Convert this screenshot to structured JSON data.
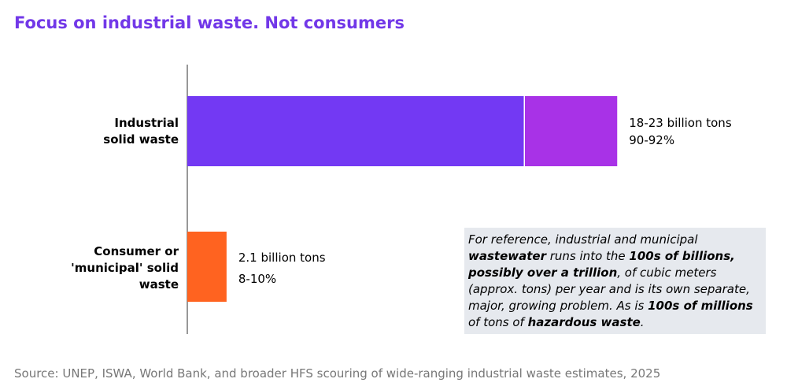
{
  "title": "Focus on industrial waste. Not consumers",
  "chart_data": {
    "type": "bar",
    "orientation": "horizontal",
    "categories": [
      "Industrial solid waste",
      "Consumer or 'municipal' solid waste"
    ],
    "category_labels": [
      [
        "Industrial",
        "solid waste"
      ],
      [
        "Consumer or",
        "'municipal' solid",
        "waste"
      ]
    ],
    "segments": [
      {
        "low_billion_tons": 18,
        "high_billion_tons": 23
      },
      {
        "value_billion_tons": 2.1
      }
    ],
    "value_labels": [
      [
        "18-23 billion tons",
        "90-92%"
      ],
      [
        "2.1 billion tons",
        "8-10%"
      ]
    ],
    "colors": {
      "industrial": "#7339f3",
      "industrial_range": "#a832e7",
      "consumer": "#ff6320"
    },
    "grid": false
  },
  "note": {
    "runs": [
      {
        "text": "For reference, industrial and municipal ",
        "bold": false
      },
      {
        "text": "wastewater",
        "bold": true
      },
      {
        "text": " runs into the ",
        "bold": false
      },
      {
        "text": "100s of billions, possibly over a trillion",
        "bold": true
      },
      {
        "text": ", of cubic meters (approx. tons) per year and is its own separate, major, growing problem. As is ",
        "bold": false
      },
      {
        "text": "100s of millions",
        "bold": true
      },
      {
        "text": " of tons of ",
        "bold": false
      },
      {
        "text": "hazardous waste",
        "bold": true
      },
      {
        "text": ".",
        "bold": false
      }
    ]
  },
  "source": "Source: UNEP, ISWA, World Bank, and broader HFS scouring of wide-ranging industrial waste estimates, 2025"
}
